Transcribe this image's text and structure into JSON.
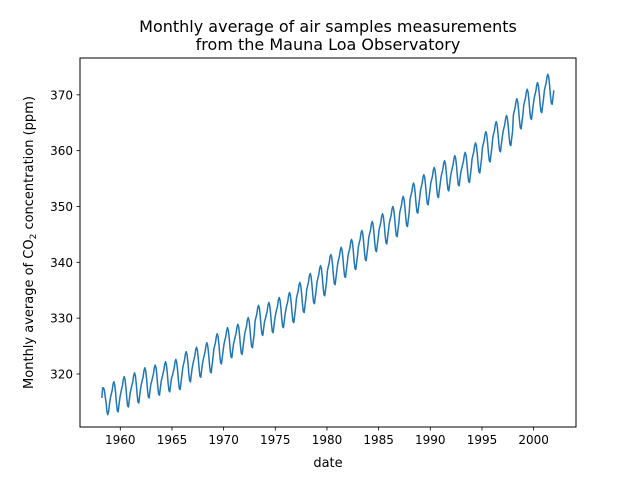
{
  "chart_data": {
    "type": "line",
    "title_lines": [
      "Monthly average of air samples measurements",
      "from the Mauna Loa Observatory"
    ],
    "xlabel": "date",
    "ylabel_parts": {
      "before": "Monthly average of CO",
      "sub": "2",
      "after": " concentration (ppm)"
    },
    "xlim": [
      1956.1,
      2004.1
    ],
    "ylim": [
      310.5,
      376.6
    ],
    "xticks": [
      1960,
      1965,
      1970,
      1975,
      1980,
      1985,
      1990,
      1995,
      2000
    ],
    "xtick_labels": [
      "1960",
      "1965",
      "1970",
      "1975",
      "1980",
      "1985",
      "1990",
      "1995",
      "2000"
    ],
    "yticks": [
      320,
      330,
      340,
      350,
      360,
      370
    ],
    "ytick_labels": [
      "320",
      "330",
      "340",
      "350",
      "360",
      "370"
    ],
    "grid": false,
    "line_color": "#1f77b4",
    "monthly_values": {
      "1958": [
        null,
        null,
        315.7,
        317.5,
        317.5,
        317.1,
        315.9,
        314.9,
        313.2,
        312.7,
        313.3,
        314.7
      ],
      "1959": [
        315.7,
        316.4,
        317.0,
        318.1,
        318.6,
        318.1,
        316.7,
        314.8,
        313.4,
        313.2,
        314.5,
        315.7
      ],
      "1960": [
        316.6,
        317.3,
        317.9,
        319.0,
        319.5,
        319.0,
        317.6,
        315.7,
        314.3,
        314.1,
        315.4,
        316.6
      ],
      "1961": [
        317.3,
        318.0,
        318.6,
        319.7,
        320.2,
        319.7,
        318.3,
        316.4,
        315.0,
        314.8,
        316.1,
        317.3
      ],
      "1962": [
        318.2,
        318.9,
        319.5,
        320.6,
        321.1,
        320.6,
        319.2,
        317.3,
        315.9,
        315.7,
        317.0,
        318.2
      ],
      "1963": [
        318.7,
        319.4,
        320.0,
        321.1,
        321.6,
        321.1,
        319.7,
        317.8,
        316.4,
        316.2,
        317.5,
        318.7
      ],
      "1964": [
        319.3,
        320.0,
        320.6,
        321.7,
        322.2,
        321.7,
        320.3,
        318.4,
        317.0,
        316.8,
        318.1,
        319.3
      ],
      "1965": [
        319.7,
        320.4,
        321.0,
        322.1,
        322.6,
        322.1,
        320.7,
        318.8,
        317.4,
        317.2,
        318.5,
        319.7
      ],
      "1966": [
        321.1,
        321.8,
        322.4,
        323.5,
        324.0,
        323.5,
        322.1,
        320.2,
        318.8,
        318.6,
        319.9,
        321.1
      ],
      "1967": [
        321.9,
        322.6,
        323.2,
        324.3,
        324.8,
        324.3,
        322.9,
        321.0,
        319.6,
        319.4,
        320.7,
        321.9
      ],
      "1968": [
        322.7,
        323.4,
        324.0,
        325.1,
        325.6,
        325.1,
        323.7,
        321.8,
        320.4,
        320.2,
        321.5,
        322.7
      ],
      "1969": [
        324.3,
        325.0,
        325.6,
        326.7,
        327.2,
        326.7,
        325.3,
        323.4,
        322.0,
        321.8,
        323.1,
        324.3
      ],
      "1970": [
        325.4,
        326.1,
        326.7,
        327.8,
        328.3,
        327.8,
        326.4,
        324.5,
        323.1,
        322.9,
        324.2,
        325.4
      ],
      "1971": [
        326.0,
        326.7,
        327.3,
        328.4,
        328.9,
        328.4,
        327.0,
        325.1,
        323.7,
        323.5,
        324.8,
        326.0
      ],
      "1972": [
        327.2,
        327.9,
        328.5,
        329.6,
        330.1,
        329.6,
        328.2,
        326.3,
        324.9,
        324.7,
        326.0,
        327.2
      ],
      "1973": [
        329.4,
        330.1,
        330.7,
        331.8,
        332.3,
        331.8,
        330.4,
        328.5,
        327.1,
        326.9,
        328.2,
        329.4
      ],
      "1974": [
        329.9,
        330.6,
        331.2,
        332.3,
        332.8,
        332.3,
        330.9,
        329.0,
        327.6,
        327.4,
        328.7,
        329.9
      ],
      "1975": [
        330.8,
        331.5,
        332.1,
        333.2,
        333.7,
        333.2,
        331.8,
        329.9,
        328.5,
        328.3,
        329.6,
        330.8
      ],
      "1976": [
        331.7,
        332.4,
        333.0,
        334.1,
        334.6,
        334.1,
        332.7,
        330.8,
        329.4,
        329.2,
        330.5,
        331.7
      ],
      "1977": [
        333.5,
        334.2,
        334.8,
        335.9,
        336.4,
        335.9,
        334.5,
        332.6,
        331.2,
        331.0,
        332.3,
        333.5
      ],
      "1978": [
        335.1,
        335.8,
        336.4,
        337.5,
        338.0,
        337.5,
        336.1,
        334.2,
        332.8,
        332.6,
        333.9,
        335.1
      ],
      "1979": [
        336.5,
        337.2,
        337.8,
        338.9,
        339.4,
        338.9,
        337.5,
        335.6,
        334.2,
        334.0,
        335.3,
        336.5
      ],
      "1980": [
        338.5,
        339.2,
        339.8,
        340.9,
        341.4,
        340.9,
        339.5,
        337.6,
        336.2,
        336.0,
        337.3,
        338.5
      ],
      "1981": [
        339.8,
        340.5,
        341.1,
        342.2,
        342.7,
        342.2,
        340.8,
        338.9,
        337.5,
        337.3,
        338.6,
        339.8
      ],
      "1982": [
        341.2,
        341.9,
        342.5,
        343.6,
        344.1,
        343.6,
        342.2,
        340.3,
        338.9,
        338.7,
        340.0,
        341.2
      ],
      "1983": [
        342.8,
        343.5,
        344.1,
        345.2,
        345.7,
        345.2,
        343.8,
        341.9,
        340.5,
        340.3,
        341.6,
        342.8
      ],
      "1984": [
        344.4,
        345.1,
        345.7,
        346.8,
        347.3,
        346.8,
        345.4,
        343.5,
        342.1,
        341.9,
        343.2,
        344.4
      ],
      "1985": [
        345.8,
        346.5,
        347.1,
        348.2,
        348.7,
        348.2,
        346.8,
        344.9,
        343.5,
        343.3,
        344.6,
        345.8
      ],
      "1986": [
        347.1,
        347.8,
        348.4,
        349.5,
        350.0,
        349.5,
        348.1,
        346.2,
        344.8,
        344.6,
        345.9,
        347.1
      ],
      "1987": [
        348.9,
        349.6,
        350.2,
        351.3,
        351.8,
        351.3,
        349.9,
        348.0,
        346.6,
        346.4,
        347.7,
        348.9
      ],
      "1988": [
        351.3,
        352.0,
        352.6,
        353.7,
        354.2,
        353.7,
        352.3,
        350.4,
        349.0,
        348.8,
        350.1,
        351.3
      ],
      "1989": [
        352.8,
        353.5,
        354.1,
        355.2,
        355.7,
        355.2,
        353.8,
        351.9,
        350.5,
        350.3,
        351.6,
        352.8
      ],
      "1990": [
        354.1,
        354.8,
        355.4,
        356.5,
        357.0,
        356.5,
        355.1,
        353.2,
        351.8,
        351.6,
        352.9,
        354.1
      ],
      "1991": [
        355.3,
        356.0,
        356.6,
        357.7,
        358.2,
        357.7,
        356.3,
        354.4,
        353.0,
        352.8,
        354.1,
        355.3
      ],
      "1992": [
        356.2,
        356.9,
        357.5,
        358.6,
        359.1,
        358.6,
        357.2,
        355.3,
        353.9,
        353.7,
        355.0,
        356.2
      ],
      "1993": [
        356.8,
        357.5,
        358.1,
        359.2,
        359.7,
        359.2,
        357.8,
        355.9,
        354.5,
        354.3,
        355.6,
        356.8
      ],
      "1994": [
        358.5,
        359.2,
        359.8,
        360.9,
        361.4,
        360.9,
        359.5,
        357.6,
        356.2,
        356.0,
        357.3,
        358.5
      ],
      "1995": [
        360.5,
        361.2,
        361.8,
        362.9,
        363.4,
        362.9,
        361.5,
        359.6,
        358.2,
        358.0,
        359.3,
        360.5
      ],
      "1996": [
        362.3,
        363.0,
        363.6,
        364.7,
        365.2,
        364.7,
        363.3,
        361.4,
        360.0,
        359.8,
        361.1,
        362.3
      ],
      "1997": [
        363.4,
        364.1,
        364.7,
        365.8,
        366.3,
        365.8,
        364.4,
        362.5,
        361.1,
        360.9,
        362.2,
        363.4
      ],
      "1998": [
        366.4,
        367.1,
        367.7,
        368.8,
        369.3,
        368.8,
        367.4,
        365.5,
        364.1,
        363.9,
        365.2,
        366.4
      ],
      "1999": [
        368.1,
        368.8,
        369.4,
        370.5,
        371.0,
        370.5,
        369.1,
        367.2,
        365.8,
        365.6,
        366.9,
        368.1
      ],
      "2000": [
        369.3,
        370.0,
        370.6,
        371.7,
        372.2,
        371.7,
        370.3,
        368.4,
        367.0,
        366.8,
        368.1,
        369.3
      ],
      "2001": [
        370.8,
        371.5,
        372.1,
        373.2,
        373.7,
        373.2,
        371.8,
        369.9,
        368.5,
        368.3,
        369.6,
        370.8
      ]
    }
  }
}
